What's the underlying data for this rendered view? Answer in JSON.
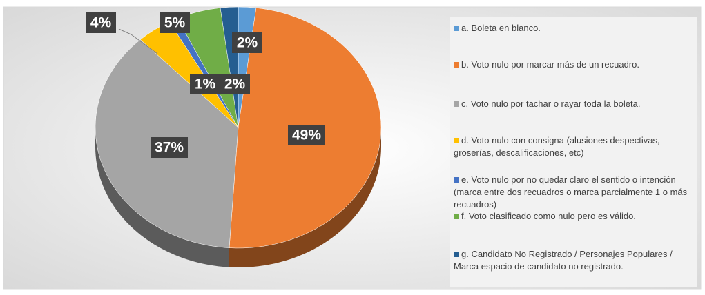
{
  "chart_data": {
    "type": "pie",
    "categories": [
      "a. Boleta en blanco.",
      "b. Voto nulo por marcar más de un recuadro.",
      "c. Voto nulo por tachar o rayar toda la boleta.",
      "d. Voto nulo con consigna (alusiones despectivas, groserías, descalificaciones, etc)",
      "e. Voto nulo por no quedar claro el sentido o intención (marca entre dos recuadros o marca parcialmente 1 o más recuadros)",
      "f. Voto clasificado como nulo pero es válido.",
      "g. Candidato No Registrado / Personajes Populares / Marca espacio de candidato no registrado."
    ],
    "values": [
      2,
      49,
      37,
      4,
      1,
      5,
      2
    ],
    "value_labels": [
      "2%",
      "49%",
      "37%",
      "4%",
      "1%",
      "5%",
      "2%"
    ],
    "colors": [
      "#5b9bd5",
      "#ed7d31",
      "#a5a5a5",
      "#ffc000",
      "#4472c4",
      "#70ad47",
      "#255e91"
    ],
    "legend": "right"
  }
}
